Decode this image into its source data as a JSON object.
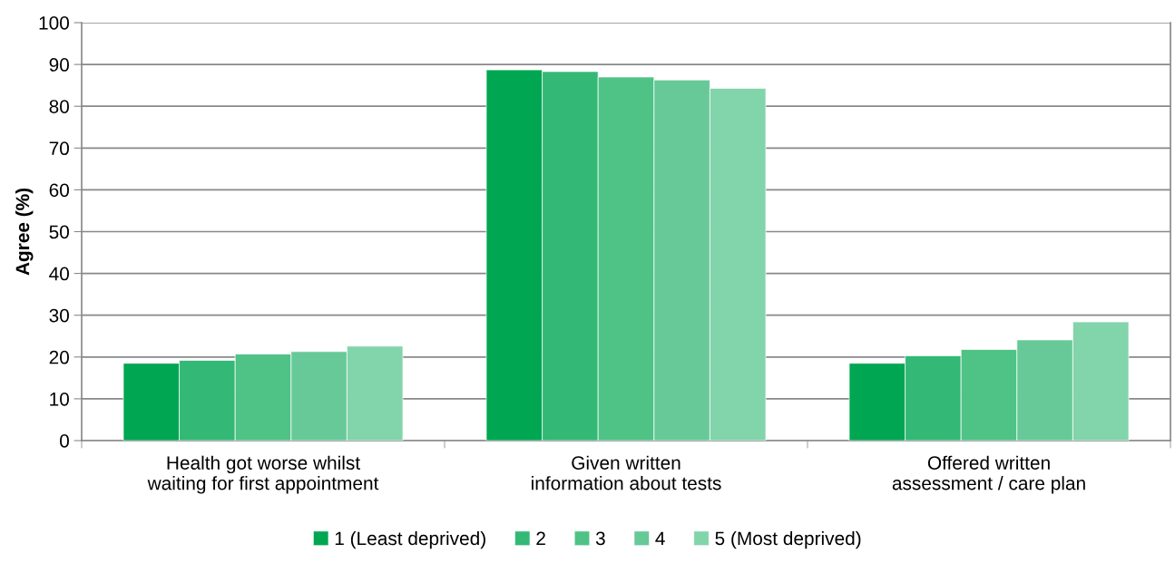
{
  "chart_data": {
    "type": "bar",
    "ylabel": "Agree (%)",
    "categories": [
      "Health got worse whilst\nwaiting for first appointment",
      "Given written\ninformation about tests",
      "Offered written\nassessment / care plan"
    ],
    "series": [
      {
        "name": "1 (Least deprived)",
        "color": "#00a651",
        "values": [
          18.5,
          88.7,
          18.5
        ]
      },
      {
        "name": "2",
        "color": "#33b876",
        "values": [
          19.2,
          88.3,
          20.3
        ]
      },
      {
        "name": "3",
        "color": "#4fc286",
        "values": [
          20.7,
          87.0,
          21.8
        ]
      },
      {
        "name": "4",
        "color": "#67c997",
        "values": [
          21.3,
          86.3,
          24.1
        ]
      },
      {
        "name": "5 (Most deprived)",
        "color": "#82d4aa",
        "values": [
          22.6,
          84.3,
          28.4
        ]
      }
    ],
    "ylim": [
      0,
      100
    ],
    "yticks": [
      0,
      10,
      20,
      30,
      40,
      50,
      60,
      70,
      80,
      90,
      100
    ],
    "grid": "y",
    "legend": "bottom"
  }
}
